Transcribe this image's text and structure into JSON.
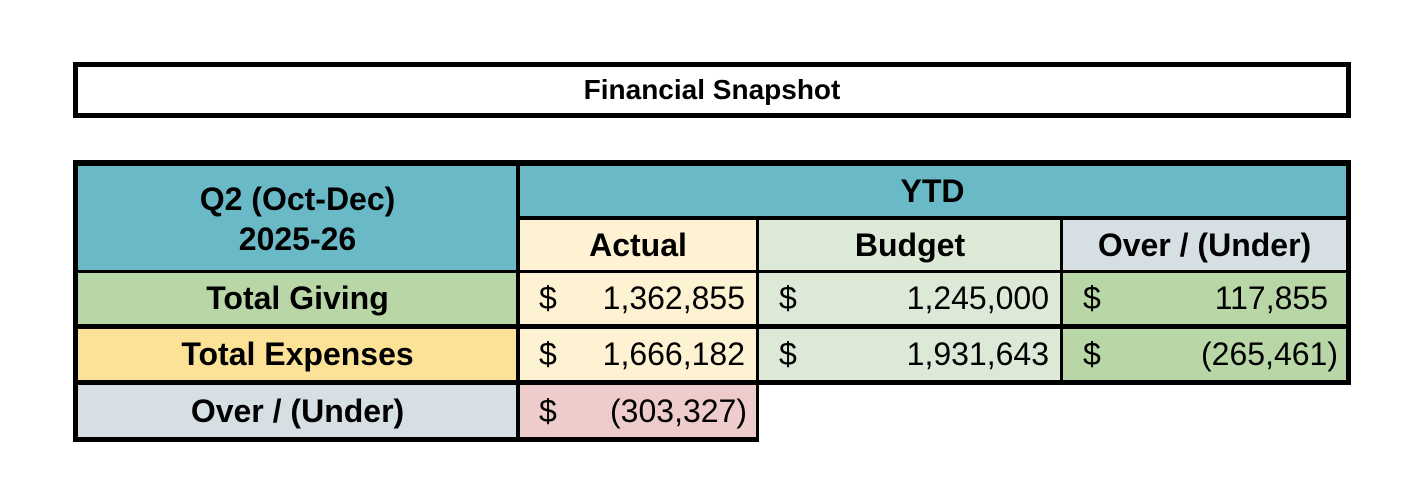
{
  "title": "Financial Snapshot",
  "period": {
    "line1": "Q2 (Oct-Dec)",
    "line2": "2025-26"
  },
  "ytd_label": "YTD",
  "columns": {
    "actual": "Actual",
    "budget": "Budget",
    "over_under": "Over / (Under)"
  },
  "rows": [
    {
      "label": "Total Giving",
      "actual": "1,362,855",
      "budget": "1,245,000",
      "over_under": "117,855"
    },
    {
      "label": "Total Expenses",
      "actual": "1,666,182",
      "budget": "1,931,643",
      "over_under": "(265,461)"
    }
  ],
  "net": {
    "label": "Over / (Under)",
    "actual": "(303,327)"
  },
  "currency": "$",
  "colors": {
    "header_teal": "#6ab9c6",
    "actual_bg": "#fdf2d2",
    "budget_bg": "#dde9d7",
    "over_under_hdr_bg": "#d6dfe3",
    "giving_bg": "#b9d6a7",
    "expenses_bg": "#fbe297",
    "net_label_bg": "#d6dfe3",
    "net_value_bg": "#eecccb"
  }
}
